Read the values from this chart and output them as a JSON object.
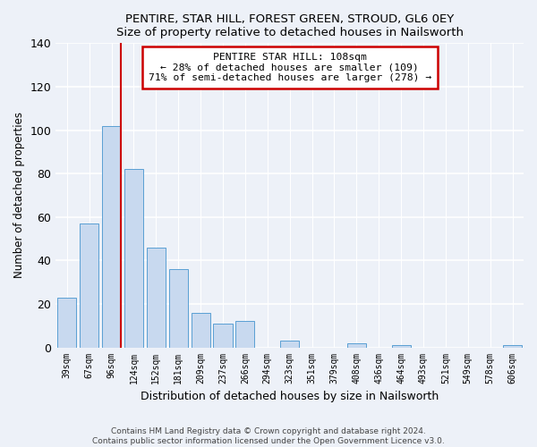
{
  "title": "PENTIRE, STAR HILL, FOREST GREEN, STROUD, GL6 0EY",
  "subtitle": "Size of property relative to detached houses in Nailsworth",
  "xlabel": "Distribution of detached houses by size in Nailsworth",
  "ylabel": "Number of detached properties",
  "bar_labels": [
    "39sqm",
    "67sqm",
    "96sqm",
    "124sqm",
    "152sqm",
    "181sqm",
    "209sqm",
    "237sqm",
    "266sqm",
    "294sqm",
    "323sqm",
    "351sqm",
    "379sqm",
    "408sqm",
    "436sqm",
    "464sqm",
    "493sqm",
    "521sqm",
    "549sqm",
    "578sqm",
    "606sqm"
  ],
  "bar_values": [
    23,
    57,
    102,
    82,
    46,
    36,
    16,
    11,
    12,
    0,
    3,
    0,
    0,
    2,
    0,
    1,
    0,
    0,
    0,
    0,
    1
  ],
  "bar_color": "#c8d9ef",
  "bar_edge_color": "#5a9fd4",
  "vline_color": "#cc0000",
  "vline_x_index": 2,
  "ylim": [
    0,
    140
  ],
  "yticks": [
    0,
    20,
    40,
    60,
    80,
    100,
    120,
    140
  ],
  "annotation_title": "PENTIRE STAR HILL: 108sqm",
  "annotation_line1": "← 28% of detached houses are smaller (109)",
  "annotation_line2": "71% of semi-detached houses are larger (278) →",
  "annotation_box_color": "#ffffff",
  "annotation_box_edge": "#cc0000",
  "footer_line1": "Contains HM Land Registry data © Crown copyright and database right 2024.",
  "footer_line2": "Contains public sector information licensed under the Open Government Licence v3.0.",
  "background_color": "#edf1f8",
  "grid_color": "#ffffff"
}
